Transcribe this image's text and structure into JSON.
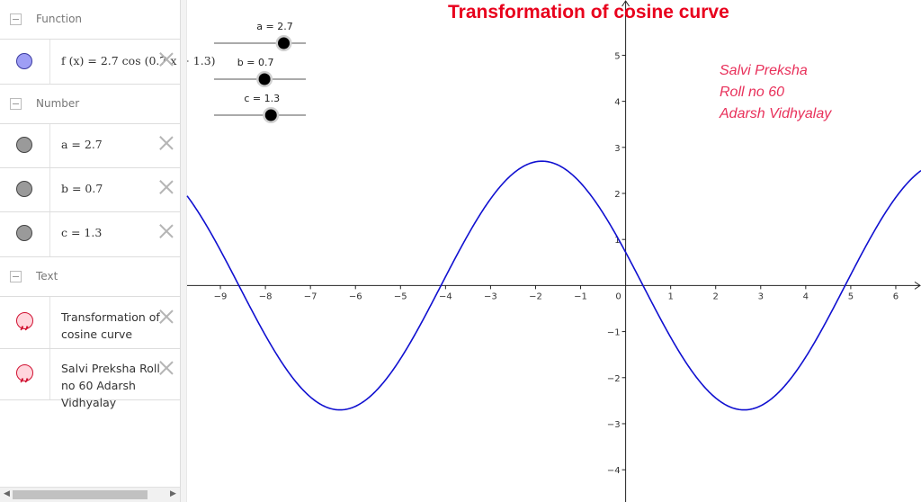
{
  "algebra": {
    "categories": {
      "function": "Function",
      "number": "Number",
      "text": "Text"
    },
    "function_row": {
      "text": "f (x)  =  2.7  cos (0.7 x + 1.3)"
    },
    "number_rows": [
      {
        "text": "a  =  2.7"
      },
      {
        "text": "b  =  0.7"
      },
      {
        "text": "c  =  1.3"
      }
    ],
    "text_rows": [
      {
        "text": "Transformation of cosine curve"
      },
      {
        "text": "Salvi Preksha Roll no 60 Adarsh Vidhyalay"
      }
    ]
  },
  "graphics": {
    "title": "Transformation of cosine curve",
    "credit_lines": [
      "Salvi Preksha",
      "Roll no 60",
      "Adarsh Vidhyalay"
    ],
    "sliders": [
      {
        "label": "a = 2.7",
        "value": 2.7,
        "fraction": 0.76
      },
      {
        "label": "b = 0.7",
        "value": 0.7,
        "fraction": 0.55
      },
      {
        "label": "c = 1.3",
        "value": 1.3,
        "fraction": 0.62
      }
    ]
  },
  "chart_data": {
    "type": "line",
    "function": "f(x) = 2.7 cos(0.7 x + 1.3)",
    "params": {
      "a": 2.7,
      "b": 0.7,
      "c": 1.3
    },
    "xlim": [
      -9.74,
      6.56
    ],
    "ylim": [
      -4.7,
      6.2
    ],
    "x_ticks": [
      -9,
      -8,
      -7,
      -6,
      -5,
      -4,
      -3,
      -2,
      -1,
      0,
      1,
      2,
      3,
      4,
      5,
      6
    ],
    "x_tick_labels": [
      "−9",
      "−8",
      "−7",
      "−6",
      "−5",
      "−4",
      "−3",
      "−2",
      "−1",
      "0",
      "1",
      "2",
      "3",
      "4",
      "5",
      "6"
    ],
    "y_ticks": [
      -4,
      -3,
      -2,
      -1,
      1,
      2,
      3,
      4,
      5
    ],
    "y_tick_labels": [
      "−4",
      "−3",
      "−2",
      "−1",
      "1",
      "2",
      "3",
      "4",
      "5"
    ],
    "grid": false,
    "curve_color": "#1010d0"
  }
}
